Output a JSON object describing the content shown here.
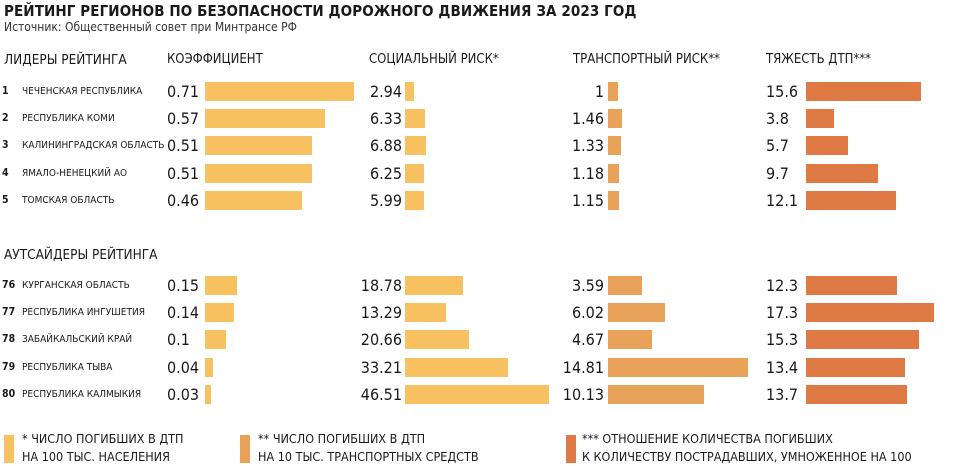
{
  "title": "РЕЙТИНГ РЕГИОНОВ ПО БЕЗОПАСНОСТИ ДОРОЖНОГО ДВИЖЕНИЯ ЗА 2023 ГОД",
  "source": "Источник: Общественный совет при Минтрансе РФ",
  "colors": {
    "coef": "#f7c061",
    "social": "#f7c061",
    "transport": "#e8a25a",
    "severity": "#e07a45"
  },
  "chart_data": {
    "type": "bar",
    "columns": [
      {
        "key": "coef",
        "label": "КОЭФФИЦИЕНТ"
      },
      {
        "key": "social",
        "label": "СОЦИАЛЬНЫЙ РИСК*"
      },
      {
        "key": "transport",
        "label": "ТРАНСПОРТНЫЙ РИСК**"
      },
      {
        "key": "severity",
        "label": "ТЯЖЕСТЬ ДТП***"
      }
    ],
    "groups": [
      {
        "label": "ЛИДЕРЫ РЕЙТИНГА",
        "rows": [
          {
            "rank": "1",
            "region": "ЧЕЧЕНСКАЯ РЕСПУБЛИКА",
            "coef": 0.71,
            "social": 2.94,
            "transport": 1,
            "severity": 15.6
          },
          {
            "rank": "2",
            "region": "РЕСПУБЛИКА КОМИ",
            "coef": 0.57,
            "social": 6.33,
            "transport": 1.46,
            "severity": 3.8
          },
          {
            "rank": "3",
            "region": "КАЛИНИНГРАДСКАЯ ОБЛАСТЬ",
            "coef": 0.51,
            "social": 6.88,
            "transport": 1.33,
            "severity": 5.7
          },
          {
            "rank": "4",
            "region": "ЯМАЛО-НЕНЕЦКИЙ АО",
            "coef": 0.51,
            "social": 6.25,
            "transport": 1.18,
            "severity": 9.7
          },
          {
            "rank": "5",
            "region": "ТОМСКАЯ ОБЛАСТЬ",
            "coef": 0.46,
            "social": 5.99,
            "transport": 1.15,
            "severity": 12.1
          }
        ]
      },
      {
        "label": "АУТСАЙДЕРЫ РЕЙТИНГА",
        "rows": [
          {
            "rank": "76",
            "region": "КУРГАНСКАЯ ОБЛАСТЬ",
            "coef": 0.15,
            "social": 18.78,
            "transport": 3.59,
            "severity": 12.3
          },
          {
            "rank": "77",
            "region": "РЕСПУБЛИКА ИНГУШЕТИЯ",
            "coef": 0.14,
            "social": 13.29,
            "transport": 6.02,
            "severity": 17.3
          },
          {
            "rank": "78",
            "region": "ЗАБАЙКАЛЬСКИЙ КРАЙ",
            "coef": 0.1,
            "social": 20.66,
            "transport": 4.67,
            "severity": 15.3
          },
          {
            "rank": "79",
            "region": "РЕСПУБЛИКА ТЫВА",
            "coef": 0.04,
            "social": 33.21,
            "transport": 14.81,
            "severity": 13.4
          },
          {
            "rank": "80",
            "region": "РЕСПУБЛИКА КАЛМЫКИЯ",
            "coef": 0.03,
            "social": 46.51,
            "transport": 10.13,
            "severity": 13.7
          }
        ]
      }
    ],
    "legend": [
      {
        "marker": "*",
        "lines": [
          "*  ЧИСЛО ПОГИБШИХ В ДТП",
          "НА 100 ТЫС. НАСЕЛЕНИЯ"
        ]
      },
      {
        "marker": "**",
        "lines": [
          "** ЧИСЛО ПОГИБШИХ В ДТП",
          "НА 10 ТЫС. ТРАНСПОРТНЫХ СРЕДСТВ"
        ]
      },
      {
        "marker": "***",
        "lines": [
          "*** ОТНОШЕНИЕ КОЛИЧЕСТВА ПОГИБШИХ",
          "К КОЛИЧЕСТВУ ПОСТРАДАВШИХ, УМНОЖЕННОЕ НА 100"
        ]
      }
    ]
  }
}
